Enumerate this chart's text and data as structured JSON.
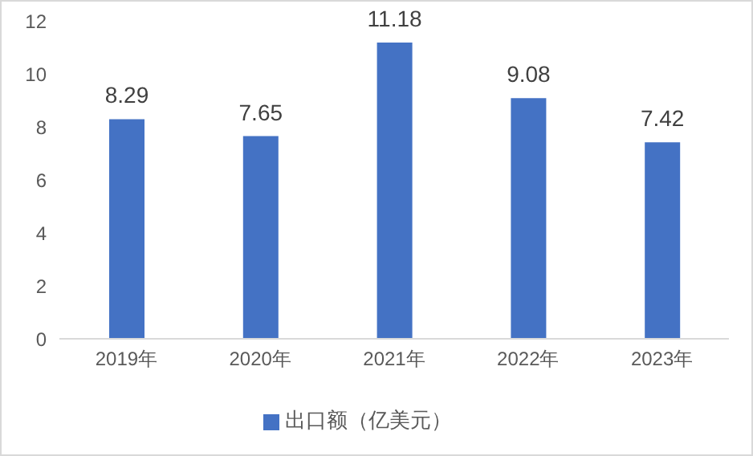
{
  "chart_data": {
    "type": "bar",
    "categories": [
      "2019年",
      "2020年",
      "2021年",
      "2022年",
      "2023年"
    ],
    "series": [
      {
        "name": "出口额（亿美元）",
        "color": "#4472c4",
        "values": [
          8.29,
          7.65,
          11.18,
          9.08,
          7.42
        ]
      }
    ],
    "ylim": [
      0,
      12
    ],
    "yticks": [
      0,
      2,
      4,
      6,
      8,
      10,
      12
    ],
    "grid": false,
    "legend": "bottom",
    "data_labels": true
  }
}
